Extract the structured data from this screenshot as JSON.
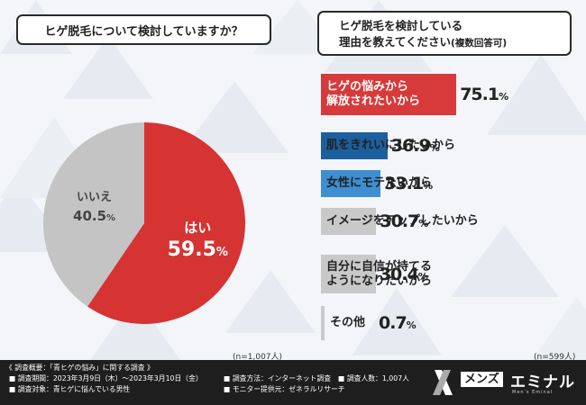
{
  "left_question": "ヒゲ脱毛について検討していますか？",
  "right_question": {
    "line1": "ヒゲ脱毛を検討している",
    "line2": "理由を教えてください",
    "line2_sub": "(複数回答可)"
  },
  "left_n": "(n=1,007人)",
  "right_n": "(n=599人)",
  "colors": {
    "yes": "#d63333",
    "no": "#c4c4c4",
    "red_bar": "#d63a3a",
    "blue_dark": "#1b5f9e",
    "blue_light": "#3d8fd1",
    "gray_bar": "#c9c9c9"
  },
  "chart_data": [
    {
      "type": "pie",
      "title": "ヒゲ脱毛について検討していますか？",
      "slices": [
        {
          "label": "はい",
          "value": 59.5
        },
        {
          "label": "いいえ",
          "value": 40.5
        }
      ]
    },
    {
      "type": "bar",
      "title": "ヒゲ脱毛を検討している理由を教えてください(複数回答可)",
      "categories": [
        "ヒゲの悩みから解放されたいから",
        "肌をきれいにしたいから",
        "女性にモテたいから",
        "イメージをアップしたいから",
        "自分に自信が持てるようになりたいから",
        "その他"
      ],
      "values": [
        75.1,
        36.9,
        33.1,
        30.7,
        30.4,
        0.7
      ],
      "label_lines": [
        [
          "ヒゲの悩みから",
          "解放されたいから"
        ],
        [
          "肌をきれいにしたいから"
        ],
        [
          "女性にモテたいから"
        ],
        [
          "イメージをアップしたいから"
        ],
        [
          "自分に自信が持てる",
          "ようになりたいから"
        ],
        [
          "その他"
        ]
      ],
      "value_labels": [
        "75.1",
        "36.9",
        "33.1",
        "30.7",
        "30.4",
        "0.7"
      ],
      "unit": "%"
    }
  ],
  "footer": {
    "summary": "《 調査概要：「青ヒゲの悩み」に関する調査 》",
    "period": "■ 調査期間：2023年3月9日（木）～2023年3月10日（金）",
    "target": "■ 調査対象：青ヒゲに悩んでいる男性",
    "method": "■ 調査方法：インターネット調査",
    "count": "■ 調査人数：1,007人",
    "monitor": "■ モニター提供元：ゼネラルリサーチ"
  },
  "logo": {
    "mens": "メンズ",
    "eminal": "エミナル",
    "sub": "Men's Eminal"
  }
}
